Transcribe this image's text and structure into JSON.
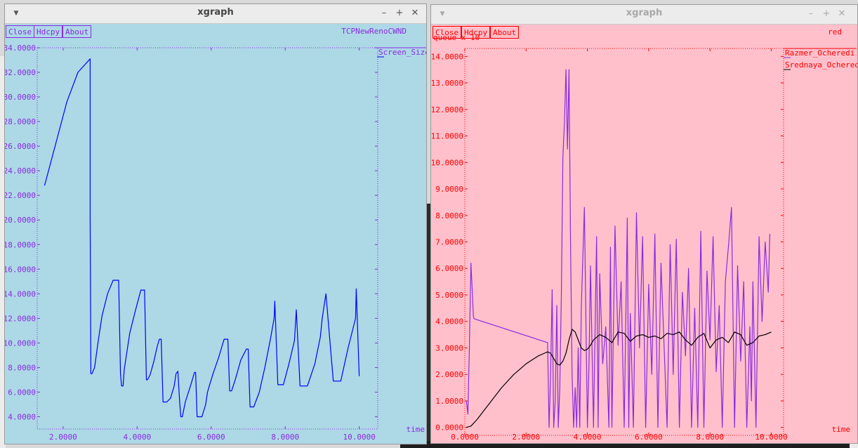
{
  "windows": [
    {
      "title": "xgraph",
      "buttons": {
        "close": "Close",
        "hdcpy": "Hdcpy",
        "about": "About"
      },
      "graph_title": "TCPNewRenoCWND",
      "xlabel": "time",
      "ylabel": "",
      "legend": [
        "Screen_Size"
      ],
      "colors": {
        "background": "#add8e6",
        "text": "#8a2be2",
        "series": "#0000ff"
      },
      "chart_data": {
        "type": "line",
        "title": "TCPNewRenoCWND",
        "xlabel": "time",
        "ylabel": "",
        "xlim": [
          1.3,
          10.5
        ],
        "ylim": [
          3.0,
          34.0
        ],
        "x_ticks": [
          "2.0000",
          "4.0000",
          "6.0000",
          "8.0000",
          "10.0000"
        ],
        "x_tick_values": [
          2,
          4,
          6,
          8,
          10
        ],
        "y_ticks": [
          "4.0000",
          "6.0000",
          "8.0000",
          "10.0000",
          "12.0000",
          "14.0000",
          "16.0000",
          "18.0000",
          "20.0000",
          "22.0000",
          "24.0000",
          "26.0000",
          "28.0000",
          "30.0000",
          "32.0000",
          "34.0000"
        ],
        "y_tick_values": [
          4,
          6,
          8,
          10,
          12,
          14,
          16,
          18,
          20,
          22,
          24,
          26,
          28,
          30,
          32,
          34
        ],
        "series": [
          {
            "name": "Screen_Size",
            "color": "#0000ff",
            "x": [
              1.5,
              1.8,
              2.1,
              2.4,
              2.73,
              2.73,
              2.75,
              2.78,
              2.85,
              2.95,
              3.05,
              3.2,
              3.35,
              3.5,
              3.55,
              3.58,
              3.62,
              3.65,
              3.7,
              3.8,
              3.95,
              4.1,
              4.2,
              4.25,
              4.28,
              4.35,
              4.45,
              4.55,
              4.6,
              4.65,
              4.7,
              4.8,
              4.9,
              5.0,
              5.05,
              5.1,
              5.15,
              5.18,
              5.22,
              5.3,
              5.45,
              5.55,
              5.58,
              5.62,
              5.75,
              5.85,
              5.9,
              5.95,
              6.05,
              6.2,
              6.35,
              6.45,
              6.5,
              6.55,
              6.65,
              6.8,
              6.95,
              7.0,
              7.05,
              7.15,
              7.3,
              7.45,
              7.6,
              7.7,
              7.72,
              7.8,
              7.95,
              8.1,
              8.25,
              8.3,
              8.4,
              8.6,
              8.8,
              8.95,
              9.0,
              9.1,
              9.3,
              9.5,
              9.7,
              9.9,
              9.92,
              10.0
            ],
            "y": [
              22.8,
              26.2,
              29.6,
              32.0,
              33.1,
              20.4,
              7.5,
              7.5,
              8.0,
              10.2,
              12.2,
              14.0,
              15.1,
              15.1,
              7.5,
              6.5,
              6.5,
              7.8,
              8.8,
              10.8,
              12.6,
              14.3,
              14.3,
              7.0,
              7.0,
              7.4,
              8.5,
              9.8,
              10.3,
              10.3,
              5.2,
              5.2,
              5.5,
              6.5,
              7.5,
              7.7,
              5.1,
              4.0,
              4.0,
              5.2,
              6.6,
              7.6,
              7.6,
              4.0,
              4.0,
              5.0,
              6.0,
              6.5,
              7.5,
              8.8,
              10.3,
              10.3,
              6.1,
              6.1,
              7.0,
              8.6,
              9.5,
              9.5,
              4.8,
              4.8,
              6.0,
              8.0,
              10.3,
              12.0,
              13.4,
              6.6,
              6.6,
              8.3,
              10.2,
              12.7,
              6.5,
              6.5,
              8.3,
              10.5,
              12.0,
              14.0,
              6.9,
              6.9,
              9.6,
              12.0,
              14.4,
              7.3
            ]
          }
        ]
      }
    },
    {
      "title": "xgraph",
      "buttons": {
        "close": "Close",
        "hdcpy": "Hdcpy",
        "about": "About"
      },
      "graph_title": "red",
      "xlabel": "time",
      "ylabel": "queue x 10",
      "legend": [
        "Razmer_Ocheredi",
        "Srednaya_Ochered"
      ],
      "colors": {
        "background": "#ffc0cb",
        "text": "#ff0000",
        "series_1": "#8a2be2",
        "series_2": "#000000"
      },
      "chart_data": {
        "type": "line",
        "title": "red",
        "xlabel": "time",
        "ylabel": "queue x 10",
        "xlim": [
          0.0,
          10.4
        ],
        "ylim": [
          -0.3,
          14.3
        ],
        "x_ticks": [
          "0.0000",
          "2.0000",
          "4.0000",
          "6.0000",
          "8.0000",
          "10.0000"
        ],
        "x_tick_values": [
          0,
          2,
          4,
          6,
          8,
          10
        ],
        "y_ticks": [
          "0.0000",
          "1.0000",
          "2.0000",
          "3.0000",
          "4.0000",
          "5.0000",
          "6.0000",
          "7.0000",
          "8.0000",
          "9.0000",
          "10.0000",
          "11.0000",
          "12.0000",
          "13.0000",
          "14.0000"
        ],
        "y_tick_values": [
          0,
          1,
          2,
          3,
          4,
          5,
          6,
          7,
          8,
          9,
          10,
          11,
          12,
          13,
          14
        ],
        "series": [
          {
            "name": "Razmer_Ocheredi",
            "color": "#8a2be2",
            "x": [
              0.05,
              0.1,
              0.15,
              0.2,
              0.25,
              0.28,
              0.3,
              2.7,
              2.75,
              2.8,
              2.85,
              2.9,
              2.95,
              3.0,
              3.05,
              3.1,
              3.15,
              3.2,
              3.25,
              3.3,
              3.35,
              3.4,
              3.45,
              3.5,
              3.55,
              3.6,
              3.65,
              3.7,
              3.75,
              3.8,
              3.9,
              4.0,
              4.05,
              4.1,
              4.2,
              4.3,
              4.35,
              4.4,
              4.5,
              4.6,
              4.7,
              4.75,
              4.8,
              4.9,
              5.0,
              5.1,
              5.2,
              5.3,
              5.35,
              5.4,
              5.5,
              5.6,
              5.7,
              5.8,
              5.9,
              6.0,
              6.1,
              6.2,
              6.3,
              6.4,
              6.5,
              6.6,
              6.7,
              6.8,
              6.9,
              7.0,
              7.1,
              7.2,
              7.3,
              7.4,
              7.5,
              7.6,
              7.7,
              7.8,
              7.9,
              8.0,
              8.1,
              8.2,
              8.3,
              8.4,
              8.5,
              8.6,
              8.7,
              8.8,
              8.9,
              9.0,
              9.1,
              9.2,
              9.3,
              9.35,
              9.4,
              9.5,
              9.6,
              9.7,
              9.8,
              9.9,
              9.95
            ],
            "y": [
              1.0,
              0.5,
              3.0,
              6.2,
              5.0,
              4.2,
              4.1,
              3.2,
              0.0,
              2.0,
              5.2,
              0.0,
              1.0,
              4.6,
              0.0,
              1.5,
              5.0,
              10.2,
              11.5,
              13.5,
              10.5,
              13.5,
              7.0,
              2.0,
              0.0,
              1.5,
              0.0,
              3.0,
              0.0,
              4.5,
              8.3,
              0.0,
              2.3,
              6.1,
              0.0,
              7.2,
              0.0,
              5.8,
              2.4,
              3.8,
              0.0,
              6.8,
              0.0,
              7.6,
              3.1,
              5.5,
              0.0,
              7.9,
              0.0,
              4.3,
              0.0,
              8.1,
              3.0,
              7.2,
              0.0,
              5.4,
              2.0,
              7.3,
              0.0,
              6.2,
              3.1,
              0.0,
              6.9,
              2.0,
              7.1,
              0.0,
              5.1,
              2.7,
              6.0,
              0.0,
              4.5,
              0.0,
              7.4,
              0.0,
              5.9,
              3.3,
              7.2,
              2.1,
              4.6,
              0.0,
              5.5,
              6.8,
              8.3,
              0.0,
              6.1,
              2.5,
              5.5,
              0.0,
              3.8,
              1.0,
              5.5,
              0.0,
              7.2,
              4.0,
              7.0,
              5.1,
              7.3
            ]
          },
          {
            "name": "Srednaya_Ochered",
            "color": "#000000",
            "x": [
              0.05,
              0.2,
              0.4,
              0.6,
              0.8,
              1.0,
              1.2,
              1.4,
              1.6,
              1.8,
              2.0,
              2.2,
              2.4,
              2.6,
              2.7,
              2.8,
              2.9,
              3.0,
              3.1,
              3.2,
              3.3,
              3.4,
              3.5,
              3.6,
              3.7,
              3.8,
              3.9,
              4.0,
              4.1,
              4.2,
              4.4,
              4.6,
              4.8,
              5.0,
              5.2,
              5.4,
              5.6,
              5.8,
              6.0,
              6.2,
              6.4,
              6.6,
              6.8,
              7.0,
              7.2,
              7.4,
              7.6,
              7.8,
              8.0,
              8.2,
              8.4,
              8.6,
              8.8,
              9.0,
              9.2,
              9.4,
              9.6,
              9.8,
              10.0
            ],
            "y": [
              0.0,
              0.05,
              0.3,
              0.6,
              0.9,
              1.2,
              1.5,
              1.75,
              2.0,
              2.2,
              2.4,
              2.55,
              2.7,
              2.8,
              2.85,
              2.8,
              2.6,
              2.4,
              2.35,
              2.5,
              2.8,
              3.3,
              3.7,
              3.6,
              3.3,
              3.0,
              2.9,
              2.95,
              3.1,
              3.3,
              3.5,
              3.4,
              3.2,
              3.6,
              3.55,
              3.25,
              3.45,
              3.5,
              3.4,
              3.45,
              3.35,
              3.55,
              3.5,
              3.6,
              3.3,
              3.1,
              3.4,
              3.55,
              3.0,
              3.3,
              3.4,
              3.2,
              3.6,
              3.5,
              3.1,
              3.2,
              3.45,
              3.5,
              3.6
            ]
          }
        ]
      }
    }
  ]
}
